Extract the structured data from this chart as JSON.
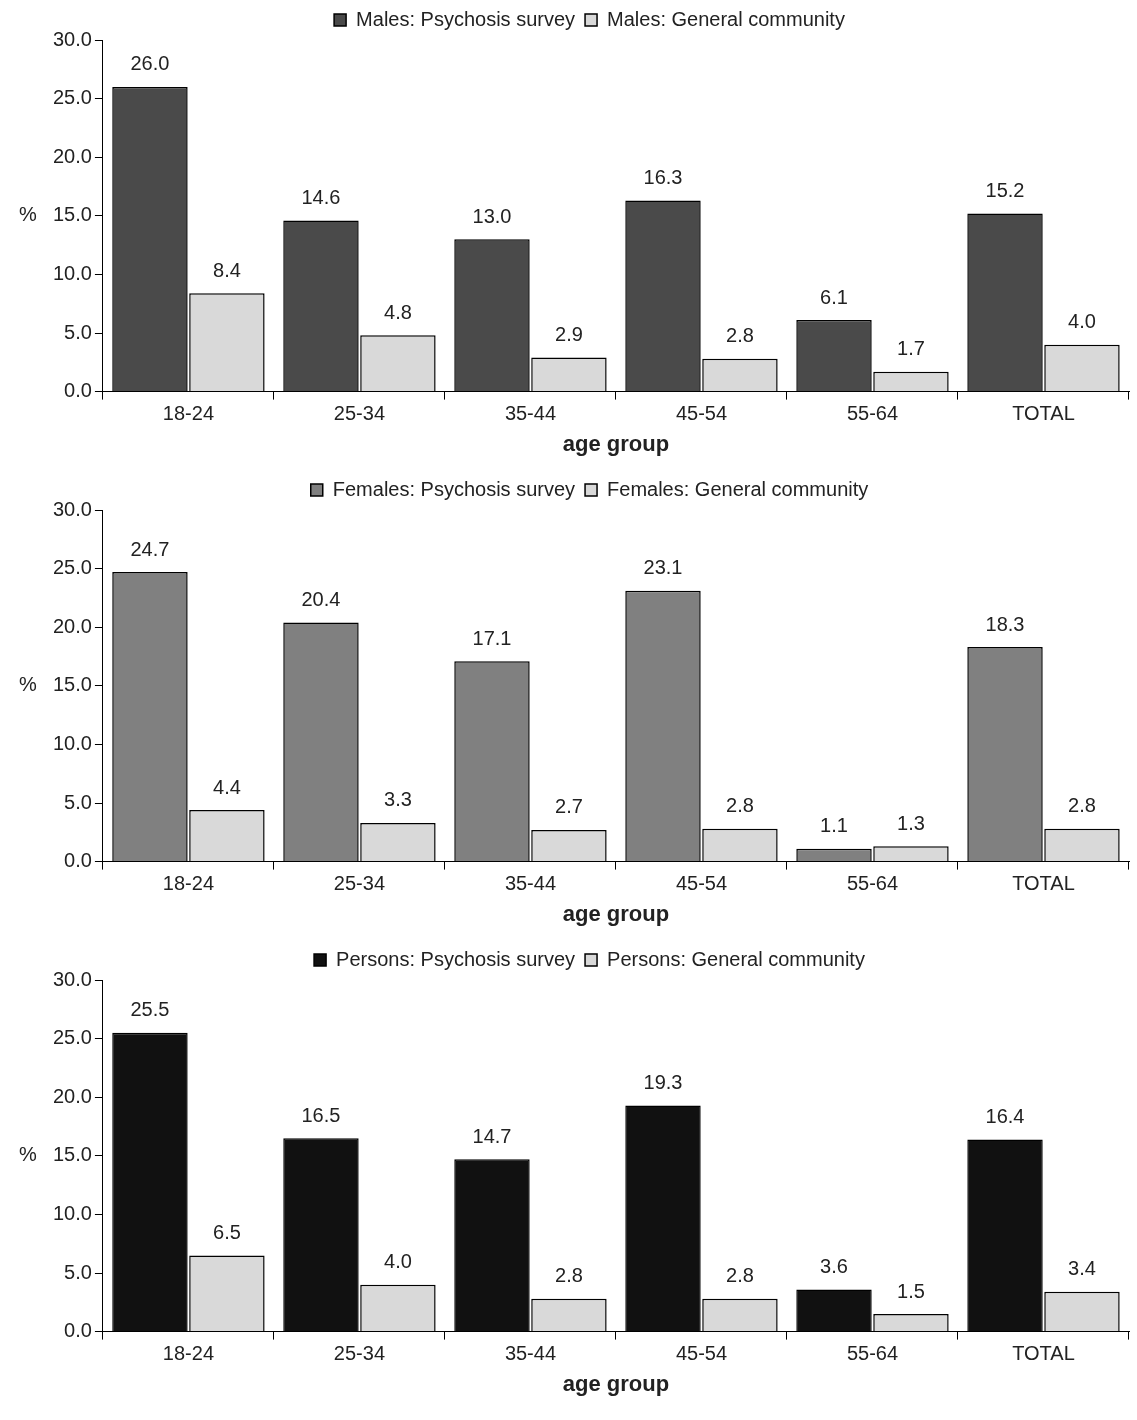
{
  "chart_data": [
    {
      "type": "bar",
      "xlabel": "age group",
      "ylabel": "%",
      "categories": [
        "18-24",
        "25-34",
        "35-44",
        "45-54",
        "55-64",
        "TOTAL"
      ],
      "ylim": [
        0,
        30
      ],
      "yticks": [
        {
          "value": 0,
          "label": "0.0"
        },
        {
          "value": 5,
          "label": "5.0"
        },
        {
          "value": 10,
          "label": "10.0"
        },
        {
          "value": 15,
          "label": "15.0"
        },
        {
          "value": 20,
          "label": "20.0"
        },
        {
          "value": 25,
          "label": "25.0"
        },
        {
          "value": 30,
          "label": "30.0"
        }
      ],
      "grid": false,
      "legend": "top",
      "series": [
        {
          "name": "Males: Psychosis survey",
          "color": "#4a4a4a",
          "values": [
            26.0,
            14.6,
            13.0,
            16.3,
            6.1,
            15.2
          ],
          "value_labels": [
            "26.0",
            "14.6",
            "13.0",
            "16.3",
            "6.1",
            "15.2"
          ]
        },
        {
          "name": "Males: General community",
          "color": "#d9d9d9",
          "values": [
            8.4,
            4.8,
            2.9,
            2.8,
            1.7,
            4.0
          ],
          "value_labels": [
            "8.4",
            "4.8",
            "2.9",
            "2.8",
            "1.7",
            "4.0"
          ]
        }
      ]
    },
    {
      "type": "bar",
      "xlabel": "age group",
      "ylabel": "%",
      "categories": [
        "18-24",
        "25-34",
        "35-44",
        "45-54",
        "55-64",
        "TOTAL"
      ],
      "ylim": [
        0,
        30
      ],
      "yticks": [
        {
          "value": 0,
          "label": "0.0"
        },
        {
          "value": 5,
          "label": "5.0"
        },
        {
          "value": 10,
          "label": "10.0"
        },
        {
          "value": 15,
          "label": "15.0"
        },
        {
          "value": 20,
          "label": "20.0"
        },
        {
          "value": 25,
          "label": "25.0"
        },
        {
          "value": 30,
          "label": "30.0"
        }
      ],
      "grid": false,
      "legend": "top",
      "series": [
        {
          "name": "Females: Psychosis survey",
          "color": "#808080",
          "values": [
            24.7,
            20.4,
            17.1,
            23.1,
            1.1,
            18.3
          ],
          "value_labels": [
            "24.7",
            "20.4",
            "17.1",
            "23.1",
            "1.1",
            "18.3"
          ]
        },
        {
          "name": "Females: General community",
          "color": "#d9d9d9",
          "values": [
            4.4,
            3.3,
            2.7,
            2.8,
            1.3,
            2.8
          ],
          "value_labels": [
            "4.4",
            "3.3",
            "2.7",
            "2.8",
            "1.3",
            "2.8"
          ]
        }
      ]
    },
    {
      "type": "bar",
      "xlabel": "age group",
      "ylabel": "%",
      "categories": [
        "18-24",
        "25-34",
        "35-44",
        "45-54",
        "55-64",
        "TOTAL"
      ],
      "ylim": [
        0,
        30
      ],
      "yticks": [
        {
          "value": 0,
          "label": "0.0"
        },
        {
          "value": 5,
          "label": "5.0"
        },
        {
          "value": 10,
          "label": "10.0"
        },
        {
          "value": 15,
          "label": "15.0"
        },
        {
          "value": 20,
          "label": "20.0"
        },
        {
          "value": 25,
          "label": "25.0"
        },
        {
          "value": 30,
          "label": "30.0"
        }
      ],
      "grid": false,
      "legend": "top",
      "series": [
        {
          "name": "Persons: Psychosis survey",
          "color": "#111111",
          "values": [
            25.5,
            16.5,
            14.7,
            19.3,
            3.6,
            16.4
          ],
          "value_labels": [
            "25.5",
            "16.5",
            "14.7",
            "19.3",
            "3.6",
            "16.4"
          ]
        },
        {
          "name": "Persons: General community",
          "color": "#d9d9d9",
          "values": [
            6.5,
            4.0,
            2.8,
            2.8,
            1.5,
            3.4
          ],
          "value_labels": [
            "6.5",
            "4.0",
            "2.8",
            "2.8",
            "1.5",
            "3.4"
          ]
        }
      ]
    }
  ]
}
